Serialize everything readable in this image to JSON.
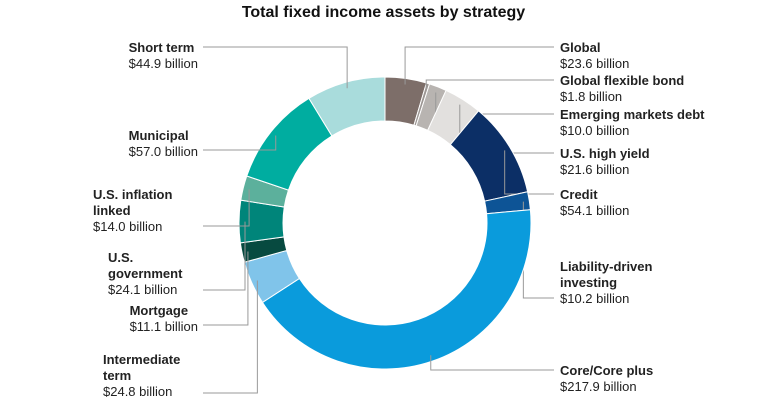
{
  "chart_data": {
    "type": "donut",
    "title": "Total fixed income assets by strategy",
    "categories": [
      "Global",
      "Global flexible bond",
      "Emerging markets debt",
      "U.S. high yield",
      "Credit",
      "Liability-driven investing",
      "Core/Core plus",
      "Intermediate term",
      "Mortgage",
      "U.S. government",
      "U.S. inflation linked",
      "Municipal",
      "Short term"
    ],
    "values": [
      23.6,
      1.8,
      10.0,
      21.6,
      54.1,
      10.2,
      217.9,
      24.8,
      11.1,
      24.1,
      14.0,
      57.0,
      44.9
    ],
    "value_labels": [
      "$23.6 billion",
      "$1.8 billion",
      "$10.0 billion",
      "$21.6 billion",
      "$54.1 billion",
      "$10.2 billion",
      "$217.9 billion",
      "$24.8 billion",
      "$11.1 billion",
      "$24.1 billion",
      "$14.0 billion",
      "$57.0 billion",
      "$44.9 billion"
    ],
    "colors": [
      "#7d6e69",
      "#9c9693",
      "#b8b4b1",
      "#e2e0de",
      "#0c2f66",
      "#0d5496",
      "#0a9bdc",
      "#80c4ea",
      "#074a40",
      "#00857a",
      "#5cb09c",
      "#00ada0",
      "#a9dcdc"
    ]
  }
}
